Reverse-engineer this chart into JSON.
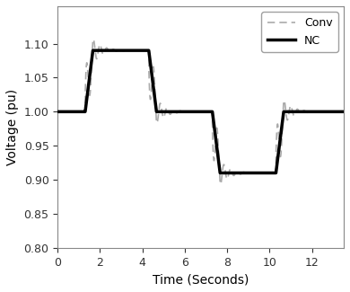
{
  "title": "",
  "xlabel": "Time (Seconds)",
  "ylabel": "Voltage (pu)",
  "xlim": [
    0,
    13.5
  ],
  "ylim": [
    0.8,
    1.155
  ],
  "yticks": [
    0.8,
    0.85,
    0.9,
    0.95,
    1.0,
    1.05,
    1.1
  ],
  "xticks": [
    0,
    2,
    4,
    6,
    8,
    10,
    12
  ],
  "nc_color": "#000000",
  "conv_color": "#aaaaaa",
  "nc_linewidth": 2.5,
  "conv_linewidth": 1.2,
  "legend_labels": [
    "Conv",
    "NC"
  ],
  "background_color": "#ffffff",
  "nc_steps": [
    [
      0.0,
      1.0
    ],
    [
      1.3,
      1.09
    ],
    [
      4.3,
      1.0
    ],
    [
      7.3,
      0.91
    ],
    [
      10.3,
      1.0
    ]
  ],
  "transitions": [
    {
      "t0": 1.3,
      "step": 0.09,
      "sign": 1
    },
    {
      "t0": 4.3,
      "step": -0.09,
      "sign": -1
    },
    {
      "t0": 7.3,
      "step": -0.09,
      "sign": -1
    },
    {
      "t0": 10.3,
      "step": 0.09,
      "sign": 1
    }
  ],
  "osc_freq": 3.2,
  "osc_damp": 2.5,
  "osc_amp_scale": 0.55,
  "spike_amp_scale": 0.28,
  "spike_freq": 1.5,
  "spike_damp": 6.0,
  "slew_rate": 0.25
}
